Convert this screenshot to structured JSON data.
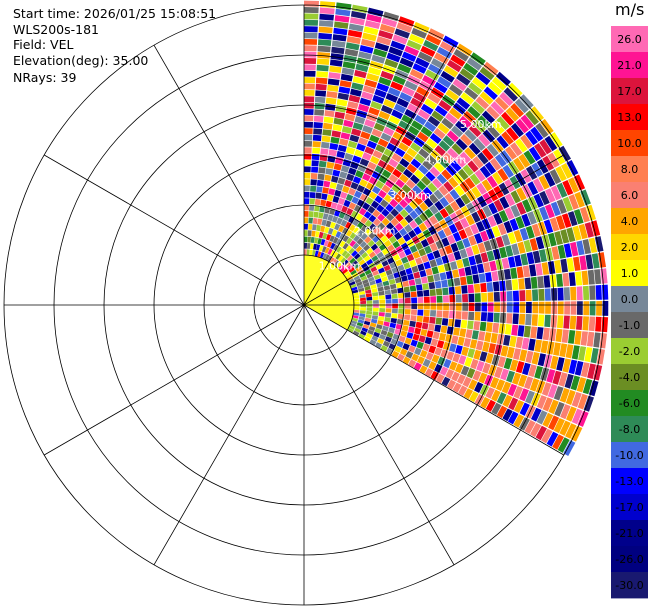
{
  "header": {
    "start_time": "Start time: 2026/01/25 15:08:51",
    "instrument": "WLS200s-181",
    "field": "Field: VEL",
    "elevation": "Elevation(deg): 35.00",
    "nrays": "NRays: 39"
  },
  "chart_data": {
    "type": "heatmap",
    "projection": "polar-ppi",
    "field": "VEL",
    "units": "m/s",
    "sector_azimuth_deg": [
      0,
      120
    ],
    "range_rings_km": [
      1,
      2,
      3,
      4,
      5,
      6
    ],
    "range_ring_labels": [
      "1.00km",
      "2.00km",
      "3.00km",
      "4.00km",
      "5.00km"
    ],
    "data_range_km": [
      1,
      6.1
    ],
    "spoke_step_deg": 30,
    "n_rays": 39,
    "colorbar": {
      "label": "m/s",
      "ticks": [
        "26.0",
        "21.0",
        "17.0",
        "13.0",
        "10.0",
        "8.0",
        "6.0",
        "4.0",
        "2.0",
        "1.0",
        "0.0",
        "-1.0",
        "-2.0",
        "-4.0",
        "-6.0",
        "-8.0",
        "-10.0",
        "-13.0",
        "-17.0",
        "-21.0",
        "-26.0",
        "-30.0"
      ],
      "colors": [
        "#ff69b4",
        "#ff1493",
        "#dc143c",
        "#ff0000",
        "#ff4500",
        "#ff7f50",
        "#fa8072",
        "#ffa500",
        "#ffd700",
        "#ffff00",
        "#778899",
        "#696969",
        "#9acd32",
        "#6b8e23",
        "#228b22",
        "#2e8b57",
        "#4169e1",
        "#0000ff",
        "#0000cd",
        "#00008b",
        "#000080",
        "#191970"
      ]
    }
  }
}
